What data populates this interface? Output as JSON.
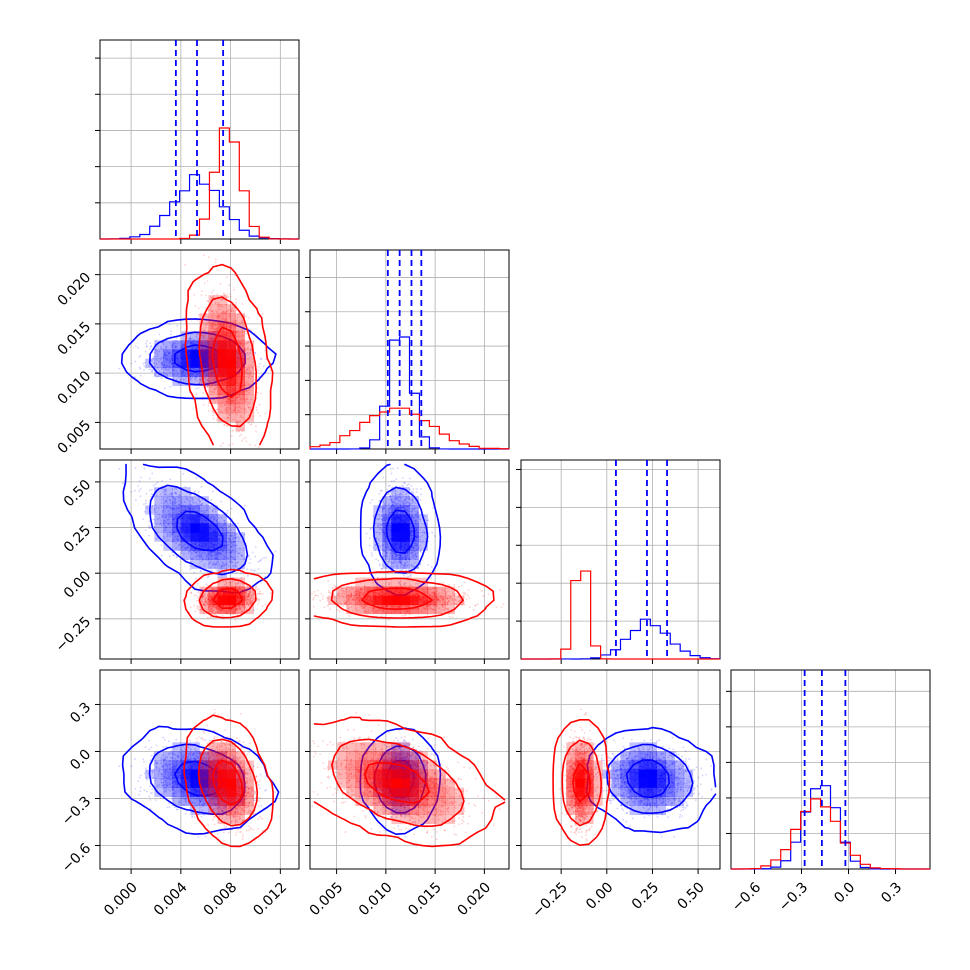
{
  "chart_data": {
    "type": "corner",
    "grid": true,
    "colors": {
      "blue": "#0000ff",
      "red": "#ff0000"
    },
    "series": [
      {
        "color": "#0000ff",
        "mean": [
          0.0054,
          0.0115,
          0.23,
          -0.18
        ],
        "sd": [
          0.0019,
          0.0011,
          0.11,
          0.1
        ],
        "corr": [
          [
            1,
            0,
            -0.6,
            -0.25
          ],
          [
            0,
            1,
            -0.1,
            0.0
          ],
          [
            -0.6,
            -0.1,
            1,
            -0.1
          ],
          [
            -0.25,
            0.0,
            -0.1,
            1
          ]
        ]
      },
      {
        "color": "#ff0000",
        "mean": [
          0.0078,
          0.011,
          -0.14,
          -0.2
        ],
        "sd": [
          0.001,
          0.0033,
          0.035,
          0.13
        ],
        "corr": [
          [
            1,
            -0.3,
            0.2,
            -0.35
          ],
          [
            -0.3,
            1,
            -0.1,
            -0.45
          ],
          [
            0.2,
            -0.1,
            1,
            0.0
          ],
          [
            -0.35,
            -0.45,
            0.0,
            1
          ]
        ]
      }
    ],
    "quantile_lines": [
      [
        0.0036,
        0.0053,
        0.0074
      ],
      [
        0.0102,
        0.0114,
        0.0126,
        0.0136
      ],
      [
        0.05,
        0.22,
        0.33
      ],
      [
        -0.28,
        -0.17,
        -0.02
      ]
    ],
    "ranges": [
      [
        -0.0025,
        0.0135
      ],
      [
        0.0023,
        0.0225
      ],
      [
        -0.47,
        0.62
      ],
      [
        -0.75,
        0.52
      ]
    ],
    "hist_ylim": [
      0.55,
      0.58,
      1.05,
      0.56
    ],
    "ticks": [
      {
        "values": [
          0.0,
          0.004,
          0.008,
          0.012
        ],
        "labels": [
          "0.000",
          "0.004",
          "0.008",
          "0.012"
        ]
      },
      {
        "values": [
          0.005,
          0.01,
          0.015,
          0.02
        ],
        "labels": [
          "0.005",
          "0.010",
          "0.015",
          "0.020"
        ]
      },
      {
        "values": [
          -0.25,
          0.0,
          0.25,
          0.5
        ],
        "labels": [
          "−0.25",
          "0.00",
          "0.25",
          "0.50"
        ]
      },
      {
        "values": [
          -0.6,
          -0.3,
          0.0,
          0.3
        ],
        "labels": [
          "−0.6",
          "−0.3",
          "0.0",
          "0.3"
        ]
      }
    ]
  }
}
